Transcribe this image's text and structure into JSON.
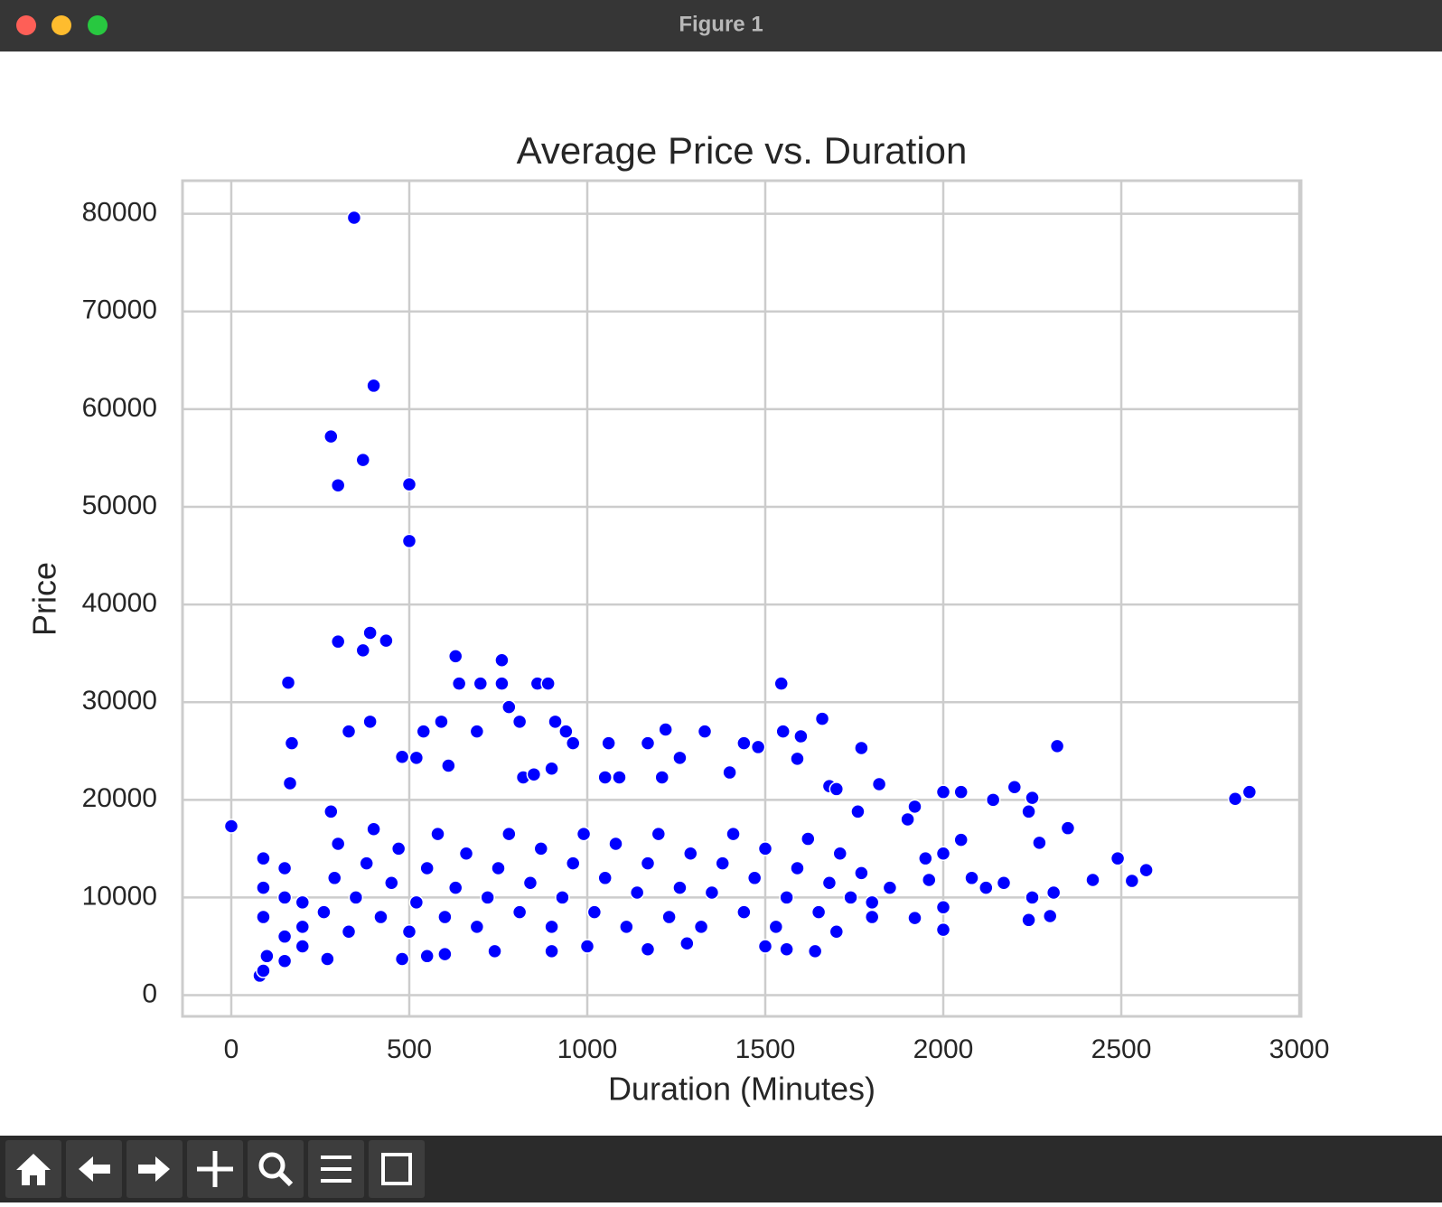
{
  "window": {
    "title": "Figure 1"
  },
  "chart_data": {
    "type": "scatter",
    "title": "Average Price vs. Duration",
    "x_label": "Duration (Minutes)",
    "y_label": "Price",
    "color": "#0000ff",
    "grid": true,
    "xlim": [
      -137,
      3005
    ],
    "ylim": [
      -2170,
      83390
    ],
    "xticks": [
      0,
      500,
      1000,
      1500,
      2000,
      2500,
      3000
    ],
    "yticks": [
      0,
      10000,
      20000,
      30000,
      40000,
      50000,
      60000,
      70000,
      80000
    ],
    "x": [
      0,
      345,
      400,
      280,
      300,
      370,
      500,
      500,
      300,
      390,
      370,
      435,
      160,
      630,
      760,
      640,
      700,
      760,
      860,
      890,
      1545,
      780,
      1660,
      1550,
      1600,
      1770,
      2320,
      2820,
      2860,
      2420,
      2490,
      2530,
      2570,
      2350,
      2250,
      2140,
      2050,
      2000,
      1820,
      1680,
      1700,
      170,
      165,
      280,
      480,
      610,
      520,
      900,
      960,
      1060,
      1170,
      1220,
      1330,
      1440,
      1480,
      1260,
      1400,
      1050,
      1090,
      820,
      850,
      1210,
      1590,
      330,
      390,
      540,
      590,
      690,
      810,
      910,
      940,
      2200,
      2240,
      1920,
      1900,
      1760,
      1960,
      2000,
      2000,
      1920,
      2240,
      2300,
      2170,
      2270,
      2050,
      80,
      90,
      100,
      150,
      200,
      270,
      480,
      550,
      600,
      740,
      900,
      1000,
      1170,
      1280,
      1500,
      1560,
      1640,
      1700,
      1800,
      1850,
      1950,
      2000,
      2080,
      2120,
      2250,
      2310,
      90,
      90,
      90,
      150,
      150,
      150,
      200,
      200,
      260,
      290,
      300,
      330,
      350,
      380,
      400,
      420,
      450,
      470,
      500,
      520,
      550,
      580,
      600,
      630,
      660,
      690,
      720,
      750,
      780,
      810,
      840,
      870,
      900,
      930,
      960,
      990,
      1020,
      1050,
      1080,
      1110,
      1140,
      1170,
      1200,
      1230,
      1260,
      1290,
      1320,
      1350,
      1380,
      1410,
      1440,
      1470,
      1500,
      1530,
      1560,
      1590,
      1620,
      1650,
      1680,
      1710,
      1740,
      1770,
      1800
    ],
    "values": [
      17300,
      79600,
      62400,
      57200,
      52200,
      54800,
      52300,
      46500,
      36200,
      37100,
      35300,
      36300,
      32000,
      34700,
      34300,
      31900,
      31900,
      31900,
      31900,
      31900,
      31900,
      29500,
      28300,
      27000,
      26500,
      25300,
      25500,
      20100,
      20800,
      11800,
      14000,
      11700,
      12800,
      17100,
      20200,
      20000,
      20800,
      20800,
      21600,
      21400,
      21100,
      25800,
      21700,
      18800,
      24400,
      23500,
      24300,
      23200,
      25800,
      25800,
      25800,
      27200,
      27000,
      25800,
      25400,
      24300,
      22800,
      22300,
      22300,
      22300,
      22600,
      22300,
      24200,
      27000,
      28000,
      27000,
      28000,
      27000,
      28000,
      28000,
      27000,
      21300,
      18800,
      19300,
      18000,
      18800,
      11800,
      9000,
      6700,
      7900,
      7700,
      8100,
      11500,
      15600,
      15900,
      2000,
      2500,
      4000,
      3500,
      5000,
      3700,
      3700,
      4000,
      4200,
      4500,
      4500,
      5000,
      4700,
      5300,
      5000,
      4700,
      4500,
      6500,
      8000,
      11000,
      14000,
      14500,
      12000,
      11000,
      10000,
      10500,
      8000,
      11000,
      14000,
      6000,
      10000,
      13000,
      7000,
      9500,
      8500,
      12000,
      15500,
      6500,
      10000,
      13500,
      17000,
      8000,
      11500,
      15000,
      6500,
      9500,
      13000,
      16500,
      8000,
      11000,
      14500,
      7000,
      10000,
      13000,
      16500,
      8500,
      11500,
      15000,
      7000,
      10000,
      13500,
      16500,
      8500,
      12000,
      15500,
      7000,
      10500,
      13500,
      16500,
      8000,
      11000,
      14500,
      7000,
      10500,
      13500,
      16500,
      8500,
      12000,
      15000,
      7000,
      10000,
      13000,
      16000,
      8500,
      11500,
      14500,
      10000,
      12500,
      9500
    ]
  }
}
